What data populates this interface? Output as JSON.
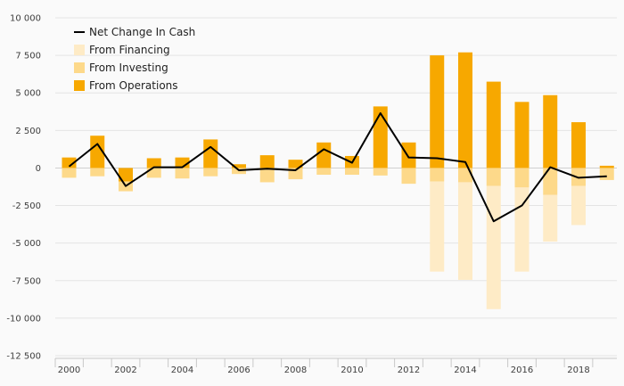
{
  "chart_data": {
    "type": "bar",
    "categories": [
      "2000",
      "2001",
      "2002",
      "2003",
      "2004",
      "2005",
      "2006",
      "2007",
      "2008",
      "2009",
      "2010",
      "2011",
      "2012",
      "2013",
      "2014",
      "2015",
      "2016",
      "2017",
      "2018",
      "2019"
    ],
    "x_tick_labels": [
      "2000",
      "2002",
      "2004",
      "2006",
      "2008",
      "2010",
      "2012",
      "2014",
      "2016",
      "2018"
    ],
    "y_tick_labels": [
      "10 000",
      "7 500",
      "5 000",
      "2 500",
      "0",
      "-2 500",
      "-5 000",
      "-7 500",
      "-10 000",
      "-12 500"
    ],
    "ylim": [
      -12500,
      10000
    ],
    "grid": true,
    "legend_position": "top-left",
    "stacked": true,
    "series": [
      {
        "name": "From Operations",
        "kind": "bar",
        "color": "#f7a800",
        "values": [
          700,
          2150,
          -900,
          650,
          700,
          1900,
          250,
          850,
          550,
          1700,
          800,
          4100,
          1700,
          7500,
          7700,
          5750,
          4400,
          4850,
          3050,
          150
        ]
      },
      {
        "name": "From Investing",
        "kind": "bar",
        "color": "#fdd98a",
        "values": [
          -650,
          -550,
          -650,
          -650,
          -700,
          -550,
          -400,
          -950,
          -750,
          -450,
          -450,
          -500,
          -1050,
          -900,
          -950,
          -1200,
          -1300,
          -1800,
          -1200,
          -800
        ]
      },
      {
        "name": "From Financing",
        "kind": "bar",
        "color": "#feebc6",
        "values": [
          0,
          0,
          0,
          0,
          0,
          0,
          0,
          0,
          0,
          0,
          0,
          0,
          0,
          -6000,
          -6500,
          -8200,
          -5600,
          -3100,
          -2600,
          0
        ]
      },
      {
        "name": "Net Change In Cash",
        "kind": "line",
        "color": "#000000",
        "values": [
          100,
          1600,
          -1200,
          50,
          50,
          1400,
          -150,
          -50,
          -150,
          1250,
          350,
          3650,
          700,
          650,
          400,
          -3550,
          -2500,
          50,
          -650,
          -550
        ]
      }
    ],
    "legend": [
      {
        "name": "Net Change In Cash",
        "symbol": "line",
        "color": "#000000"
      },
      {
        "name": "From Financing",
        "symbol": "box",
        "color": "#feebc6"
      },
      {
        "name": "From Investing",
        "symbol": "box",
        "color": "#fdd98a"
      },
      {
        "name": "From Operations",
        "symbol": "box",
        "color": "#f7a800"
      }
    ]
  }
}
